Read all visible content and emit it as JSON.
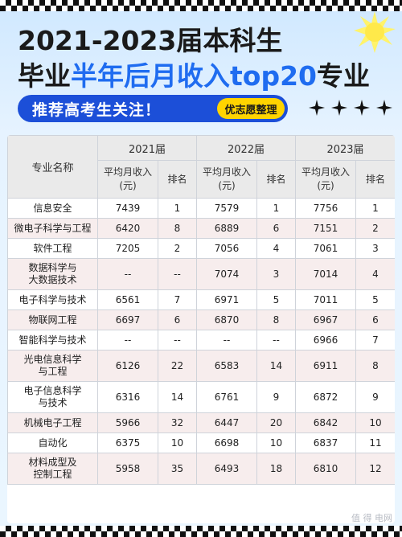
{
  "title_line1": "2021-2023届本科生",
  "title_line2_prefix": "毕业",
  "title_line2_highlight": "半年后月收入top20",
  "title_line2_suffix": "专业",
  "banner_text": "推荐高考生关注！",
  "banner_tag": "优志愿整理",
  "colors": {
    "accent_blue": "#1c4fd8",
    "highlight_blue": "#1f6cf0",
    "tag_yellow": "#ffd400",
    "row_pink": "#f7eded"
  },
  "table": {
    "col_major": "专业名称",
    "years": [
      "2021届",
      "2022届",
      "2023届"
    ],
    "sub_income": "平均月收入\n(元)",
    "sub_rank": "排名",
    "rows": [
      {
        "name": "信息安全",
        "v": [
          "7439",
          "1",
          "7579",
          "1",
          "7756",
          "1"
        ]
      },
      {
        "name": "微电子科学与工程",
        "v": [
          "6420",
          "8",
          "6889",
          "6",
          "7151",
          "2"
        ]
      },
      {
        "name": "软件工程",
        "v": [
          "7205",
          "2",
          "7056",
          "4",
          "7061",
          "3"
        ]
      },
      {
        "name": "数据科学与\n大数据技术",
        "v": [
          "--",
          "--",
          "7074",
          "3",
          "7014",
          "4"
        ]
      },
      {
        "name": "电子科学与技术",
        "v": [
          "6561",
          "7",
          "6971",
          "5",
          "7011",
          "5"
        ]
      },
      {
        "name": "物联网工程",
        "v": [
          "6697",
          "6",
          "6870",
          "8",
          "6967",
          "6"
        ]
      },
      {
        "name": "智能科学与技术",
        "v": [
          "--",
          "--",
          "--",
          "--",
          "6966",
          "7"
        ]
      },
      {
        "name": "光电信息科学\n与工程",
        "v": [
          "6126",
          "22",
          "6583",
          "14",
          "6911",
          "8"
        ]
      },
      {
        "name": "电子信息科学\n与技术",
        "v": [
          "6316",
          "14",
          "6761",
          "9",
          "6872",
          "9"
        ]
      },
      {
        "name": "机械电子工程",
        "v": [
          "5966",
          "32",
          "6447",
          "20",
          "6842",
          "10"
        ]
      },
      {
        "name": "自动化",
        "v": [
          "6375",
          "10",
          "6698",
          "10",
          "6837",
          "11"
        ]
      },
      {
        "name": "材料成型及\n控制工程",
        "v": [
          "5958",
          "35",
          "6493",
          "18",
          "6810",
          "12"
        ]
      }
    ]
  },
  "watermark": "值 得 电网"
}
